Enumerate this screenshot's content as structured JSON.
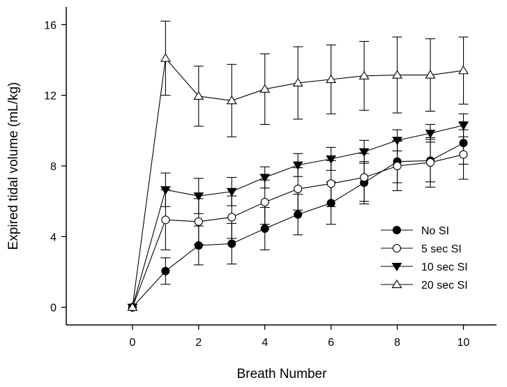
{
  "chart_data": {
    "type": "line",
    "title": "",
    "xlabel": "Breath Number",
    "ylabel": "Expired tidal volume (mL/kg)",
    "xlim": [
      -2,
      11
    ],
    "ylim": [
      -1,
      17
    ],
    "xticks": [
      0,
      2,
      4,
      6,
      8,
      10
    ],
    "yticks": [
      0,
      4,
      8,
      12,
      16
    ],
    "grid": false,
    "legend_position": "bottom-right",
    "x": [
      0,
      1,
      2,
      3,
      4,
      5,
      6,
      7,
      8,
      9,
      10
    ],
    "series": [
      {
        "name": "No SI",
        "marker": "filled-circle",
        "values": [
          0,
          2.05,
          3.5,
          3.6,
          4.45,
          5.25,
          5.9,
          7.05,
          8.25,
          8.3,
          9.3
        ],
        "error": [
          0,
          0.75,
          1.1,
          1.15,
          1.2,
          1.15,
          1.2,
          1.2,
          1.2,
          1.2,
          1.2
        ]
      },
      {
        "name": "5 sec SI",
        "marker": "open-circle",
        "values": [
          0,
          4.95,
          4.85,
          5.1,
          5.95,
          6.7,
          7.0,
          7.35,
          8.0,
          8.2,
          8.65
        ],
        "error": [
          0,
          1.7,
          1.3,
          1.2,
          1.25,
          1.2,
          1.3,
          1.35,
          1.4,
          1.4,
          1.4
        ]
      },
      {
        "name": "10 sec SI",
        "marker": "filled-triangle-down",
        "values": [
          0,
          6.65,
          6.3,
          6.55,
          7.35,
          8.05,
          8.4,
          8.8,
          9.45,
          9.85,
          10.3
        ],
        "error": [
          0,
          0.95,
          1.0,
          0.8,
          0.6,
          0.65,
          0.65,
          0.65,
          0.6,
          0.5,
          0.65
        ]
      },
      {
        "name": "20 sec SI",
        "marker": "open-triangle-up",
        "values": [
          0,
          14.1,
          11.95,
          11.7,
          12.35,
          12.7,
          12.9,
          13.1,
          13.15,
          13.15,
          13.4
        ],
        "error": [
          0,
          2.1,
          1.7,
          2.05,
          2.0,
          2.05,
          1.95,
          1.95,
          2.15,
          2.05,
          1.9
        ]
      }
    ]
  }
}
